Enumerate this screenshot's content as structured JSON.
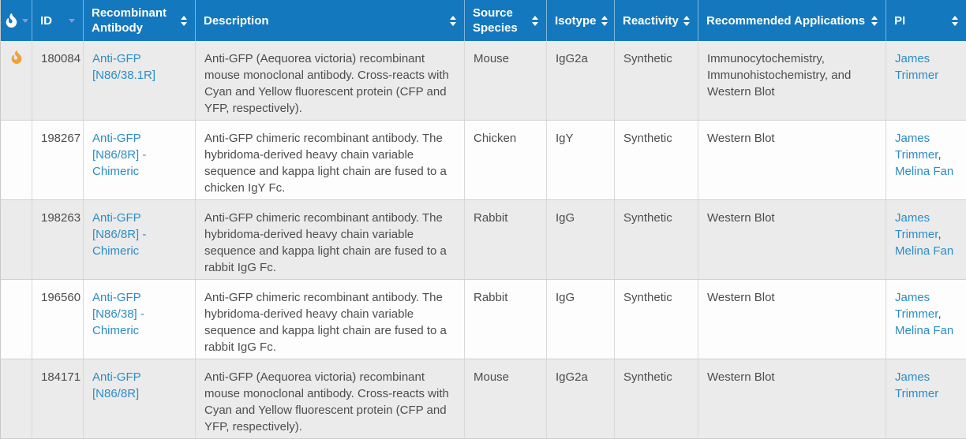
{
  "colors": {
    "header_bg": "#1478be",
    "link": "#2b8dc6",
    "flame": "#efa33c",
    "sorted_arrow": "#8e94dc",
    "row_stripe": "#ebebeb",
    "row_white": "#fdfdfd"
  },
  "table": {
    "columns": [
      {
        "label": "",
        "icon": "fire-icon",
        "sort": "desc"
      },
      {
        "label": "ID",
        "sort": "desc"
      },
      {
        "label": "Recombinant Antibody",
        "sort": "both"
      },
      {
        "label": "Description",
        "sort": "both"
      },
      {
        "label": "Source Species",
        "sort": "both"
      },
      {
        "label": "Isotype",
        "sort": "both"
      },
      {
        "label": "Reactivity",
        "sort": "both"
      },
      {
        "label": "Recommended Applications",
        "sort": "both"
      },
      {
        "label": "PI",
        "sort": "both"
      }
    ],
    "rows": [
      {
        "featured": true,
        "id": "180084",
        "antibody": "Anti-GFP [N86/38.1R]",
        "description": "Anti-GFP (Aequorea victoria) recombinant mouse monoclonal antibody. Cross-reacts with Cyan and Yellow fluorescent protein (CFP and YFP, respectively).",
        "source_species": "Mouse",
        "isotype": "IgG2a",
        "reactivity": "Synthetic",
        "applications": "Immunocytochemistry, Immunohistochemistry, and Western Blot",
        "pi": [
          "James Trimmer"
        ]
      },
      {
        "featured": false,
        "id": "198267",
        "antibody": "Anti-GFP [N86/8R] - Chimeric",
        "description": "Anti-GFP chimeric recombinant antibody. The hybridoma-derived heavy chain variable sequence and kappa light chain are fused to a chicken IgY Fc.",
        "source_species": "Chicken",
        "isotype": "IgY",
        "reactivity": "Synthetic",
        "applications": "Western Blot",
        "pi": [
          "James Trimmer",
          "Melina Fan"
        ]
      },
      {
        "featured": false,
        "id": "198263",
        "antibody": "Anti-GFP [N86/8R] - Chimeric",
        "description": "Anti-GFP chimeric recombinant antibody. The hybridoma-derived heavy chain variable sequence and kappa light chain are fused to a rabbit IgG Fc.",
        "source_species": "Rabbit",
        "isotype": "IgG",
        "reactivity": "Synthetic",
        "applications": "Western Blot",
        "pi": [
          "James Trimmer",
          "Melina Fan"
        ]
      },
      {
        "featured": false,
        "id": "196560",
        "antibody": "Anti-GFP [N86/38] - Chimeric",
        "description": "Anti-GFP chimeric recombinant antibody. The hybridoma-derived heavy chain variable sequence and kappa light chain are fused to a rabbit IgG Fc.",
        "source_species": "Rabbit",
        "isotype": "IgG",
        "reactivity": "Synthetic",
        "applications": "Western Blot",
        "pi": [
          "James Trimmer",
          "Melina Fan"
        ]
      },
      {
        "featured": false,
        "id": "184171",
        "antibody": "Anti-GFP [N86/8R]",
        "description": "Anti-GFP (Aequorea victoria) recombinant mouse monoclonal antibody. Cross-reacts with Cyan and Yellow fluorescent protein (CFP and YFP, respectively).",
        "source_species": "Mouse",
        "isotype": "IgG2a",
        "reactivity": "Synthetic",
        "applications": "Western Blot",
        "pi": [
          "James Trimmer"
        ]
      }
    ]
  }
}
